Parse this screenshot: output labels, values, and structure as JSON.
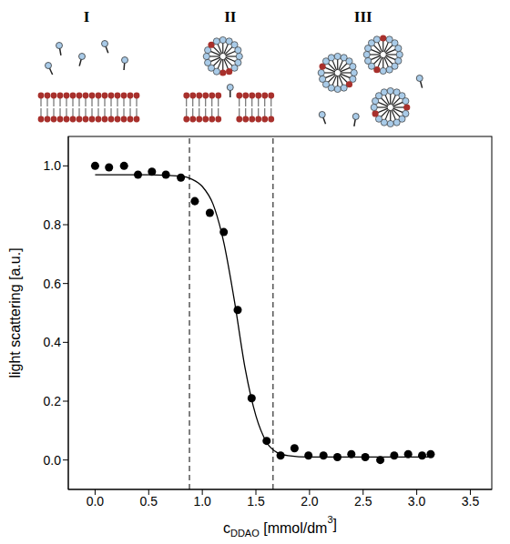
{
  "chart_data": {
    "type": "scatter",
    "xlabel": [
      "c",
      "DDAO",
      " [mmol/dm",
      "3",
      "]"
    ],
    "ylabel": "light scattering [a.u.]",
    "xlim": [
      -0.25,
      3.7
    ],
    "ylim": [
      -0.1,
      1.1
    ],
    "xticks": [
      {
        "value": 0,
        "label": "0.0"
      },
      0.5,
      {
        "value": 1,
        "label": "1.0"
      },
      1.5,
      {
        "value": 2,
        "label": "2.0"
      },
      2.5,
      {
        "value": 3,
        "label": "3.0"
      },
      3.5
    ],
    "yticks": [
      {
        "value": 0,
        "label": "0.0"
      },
      {
        "value": 0.2,
        "label": "0.2"
      },
      {
        "value": 0.4,
        "label": "0.4"
      },
      {
        "value": 0.6,
        "label": "0.6"
      },
      {
        "value": 0.8,
        "label": "0.8"
      },
      {
        "value": 1,
        "label": "1.0"
      }
    ],
    "x": [
      0.0,
      0.13,
      0.27,
      0.4,
      0.53,
      0.66,
      0.8,
      0.93,
      1.07,
      1.2,
      1.33,
      1.46,
      1.6,
      1.73,
      1.86,
      1.99,
      2.13,
      2.26,
      2.39,
      2.52,
      2.66,
      2.79,
      2.92,
      3.05,
      3.13
    ],
    "values": [
      1.0,
      0.995,
      1.0,
      0.97,
      0.98,
      0.97,
      0.96,
      0.88,
      0.84,
      0.775,
      0.51,
      0.21,
      0.065,
      0.015,
      0.04,
      0.015,
      0.015,
      0.01,
      0.02,
      0.01,
      0.0,
      0.015,
      0.02,
      0.015,
      0.02
    ],
    "color": "#000000",
    "marker": "circle",
    "fit": {
      "x": [
        0.0,
        0.5,
        0.8,
        0.9,
        1.0,
        1.1,
        1.2,
        1.3,
        1.4,
        1.5,
        1.6,
        1.7,
        1.8,
        2.0,
        3.13
      ],
      "values": [
        0.97,
        0.97,
        0.965,
        0.955,
        0.93,
        0.87,
        0.74,
        0.54,
        0.31,
        0.15,
        0.06,
        0.025,
        0.015,
        0.01,
        0.01
      ],
      "color": "#000000",
      "line_style": "solid"
    },
    "boundaries": {
      "x": [
        0.88,
        1.66
      ],
      "line_style": "dashed",
      "color": "#000000"
    },
    "regions": [
      {
        "label": "I",
        "x": -0.08
      },
      {
        "label": "II",
        "x": 1.26
      },
      {
        "label": "III",
        "x": 2.5
      }
    ]
  }
}
